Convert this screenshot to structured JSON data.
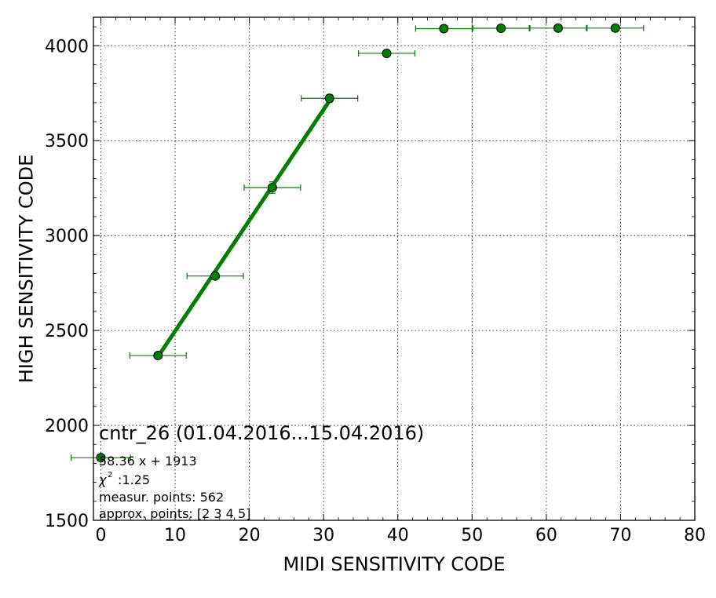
{
  "chart_data": {
    "type": "scatter",
    "xlabel": "MIDI SENSITIVITY CODE",
    "ylabel": "HIGH SENSITIVITY CODE",
    "xlim": [
      -1,
      80
    ],
    "ylim": [
      1500,
      4150
    ],
    "xticks": [
      0,
      10,
      20,
      30,
      40,
      50,
      60,
      70,
      80
    ],
    "yticks": [
      1500,
      2000,
      2500,
      3000,
      3500,
      4000
    ],
    "grid": true,
    "colors": {
      "points": "#008000",
      "fit_line": "#008000",
      "errorbars": "#008000"
    },
    "series": [
      {
        "points": [
          {
            "x": 0.0,
            "y": 1830,
            "xerr": 4.0,
            "yerr": 0
          },
          {
            "x": 7.7,
            "y": 2368,
            "xerr": 3.8,
            "yerr": 8
          },
          {
            "x": 15.4,
            "y": 2787,
            "xerr": 3.8,
            "yerr": 12
          },
          {
            "x": 23.1,
            "y": 3253,
            "xerr": 3.8,
            "yerr": 30
          },
          {
            "x": 30.8,
            "y": 3723,
            "xerr": 3.8,
            "yerr": 20
          },
          {
            "x": 38.5,
            "y": 3960,
            "xerr": 3.8,
            "yerr": 0
          },
          {
            "x": 46.2,
            "y": 4090,
            "xerr": 3.8,
            "yerr": 0
          },
          {
            "x": 53.9,
            "y": 4092,
            "xerr": 3.8,
            "yerr": 0
          },
          {
            "x": 61.6,
            "y": 4093,
            "xerr": 3.8,
            "yerr": 0
          },
          {
            "x": 69.3,
            "y": 4093,
            "xerr": 3.8,
            "yerr": 0
          }
        ]
      }
    ],
    "fit": {
      "slope": 58.36,
      "intercept": 1913,
      "x_range": [
        7.7,
        30.8
      ]
    },
    "annotation": {
      "title": "cntr_26 (01.04.2016...15.04.2016)",
      "equation": "58.36 x + 1913",
      "chi2": ":1.25",
      "measur_points": "measur. points: 562",
      "approx_points": "approx. points: [2 3 4 5]"
    }
  }
}
